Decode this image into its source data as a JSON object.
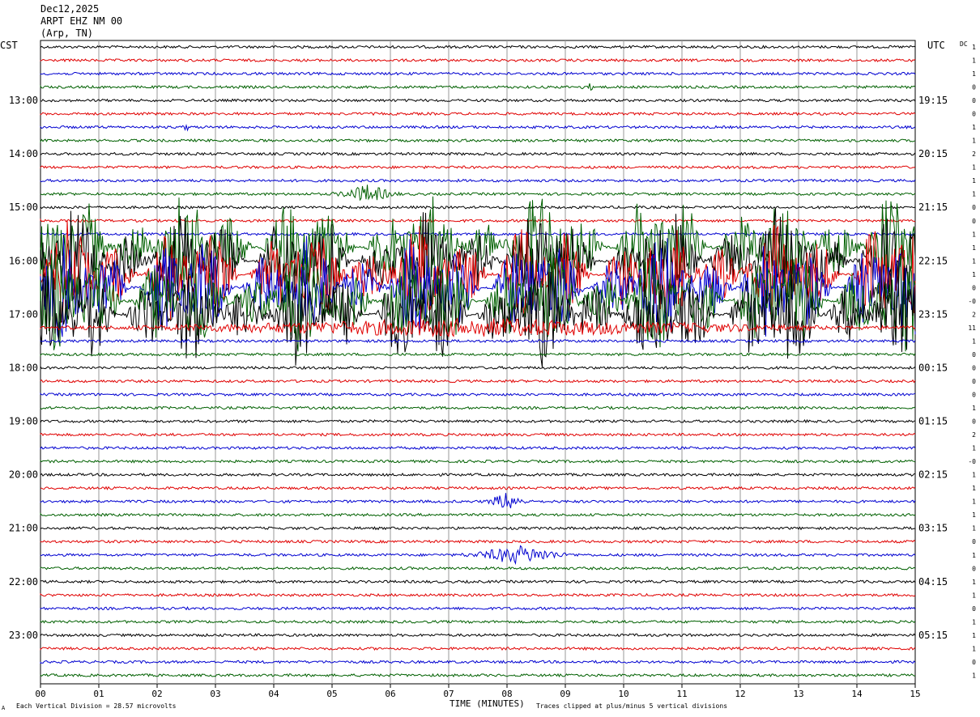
{
  "header": {
    "date": "Dec12,2025",
    "station": "ARPT EHZ NM 00",
    "location": "(Arp, TN)"
  },
  "axes": {
    "left_zone": "CST",
    "right_zone": "UTC",
    "dc_label": "DC",
    "xlabel": "TIME (MINUTES)",
    "footer_left": "Each Vertical Division =   28.57 microvolts",
    "footer_right": "Traces clipped at plus/minus 5 vertical divisions",
    "corner_mark": "A"
  },
  "colors": {
    "cycle": [
      "#000000",
      "#e00000",
      "#0000d0",
      "#006000"
    ],
    "grid": "#9a9a9a"
  },
  "chart_data": {
    "type": "line",
    "title": "ARPT EHZ NM 00",
    "xlabel": "TIME (MINUTES)",
    "xlim": [
      0,
      15
    ],
    "x_ticks": [
      "00",
      "01",
      "02",
      "03",
      "04",
      "05",
      "06",
      "07",
      "08",
      "09",
      "10",
      "11",
      "12",
      "13",
      "14",
      "15"
    ],
    "trace_count": 48,
    "left_hour_labels": [
      {
        "trace": 4,
        "label": "13:00"
      },
      {
        "trace": 8,
        "label": "14:00"
      },
      {
        "trace": 12,
        "label": "15:00"
      },
      {
        "trace": 16,
        "label": "16:00"
      },
      {
        "trace": 20,
        "label": "17:00"
      },
      {
        "trace": 24,
        "label": "18:00"
      },
      {
        "trace": 28,
        "label": "19:00"
      },
      {
        "trace": 32,
        "label": "20:00"
      },
      {
        "trace": 36,
        "label": "21:00"
      },
      {
        "trace": 40,
        "label": "22:00"
      },
      {
        "trace": 44,
        "label": "23:00"
      }
    ],
    "right_hour_labels": [
      {
        "trace": 4,
        "label": "19:15"
      },
      {
        "trace": 8,
        "label": "20:15"
      },
      {
        "trace": 12,
        "label": "21:15"
      },
      {
        "trace": 16,
        "label": "22:15"
      },
      {
        "trace": 20,
        "label": "23:15"
      },
      {
        "trace": 24,
        "label": "00:15"
      },
      {
        "trace": 28,
        "label": "01:15"
      },
      {
        "trace": 32,
        "label": "02:15"
      },
      {
        "trace": 36,
        "label": "03:15"
      },
      {
        "trace": 40,
        "label": "04:15"
      },
      {
        "trace": 44,
        "label": "05:15"
      }
    ],
    "dc_values": [
      "1",
      "1",
      "1",
      "0",
      "0",
      "0",
      "1",
      "1",
      "2",
      "1",
      "1",
      "1",
      "0",
      "0",
      "1",
      "1",
      "1",
      "1",
      "0",
      "-0",
      "2",
      "11",
      "1",
      "0",
      "0",
      "0",
      "0",
      "1",
      "0",
      "2",
      "1",
      "-0",
      "1",
      "1",
      "1",
      "1",
      "1",
      "0",
      "1",
      "0",
      "1",
      "1",
      "0",
      "1",
      "1",
      "1",
      "0",
      "1"
    ],
    "amplitude_scale": "28.57 microvolts per vertical division",
    "clip_level": "plus/minus 5 vertical divisions",
    "events": [
      {
        "trace": 15,
        "x_start": 0.0,
        "x_end": 15.0,
        "intensity": "high"
      },
      {
        "trace": 16,
        "x_start": 0.0,
        "x_end": 15.0,
        "intensity": "high"
      },
      {
        "trace": 17,
        "x_start": 0.0,
        "x_end": 15.0,
        "intensity": "high"
      },
      {
        "trace": 18,
        "x_start": 0.0,
        "x_end": 15.0,
        "intensity": "high"
      },
      {
        "trace": 19,
        "x_start": 0.0,
        "x_end": 15.0,
        "intensity": "high"
      },
      {
        "trace": 20,
        "x_start": 0.0,
        "x_end": 15.0,
        "intensity": "high"
      },
      {
        "trace": 21,
        "x_start": 0.0,
        "x_end": 15.0,
        "intensity": "medium"
      },
      {
        "trace": 11,
        "x_start": 5.0,
        "x_end": 6.2,
        "intensity": "medium"
      },
      {
        "trace": 38,
        "x_start": 7.2,
        "x_end": 9.2,
        "intensity": "medium"
      },
      {
        "trace": 34,
        "x_start": 7.6,
        "x_end": 8.4,
        "intensity": "medium"
      },
      {
        "trace": 6,
        "x_start": 2.4,
        "x_end": 2.6,
        "intensity": "low"
      },
      {
        "trace": 3,
        "x_start": 9.2,
        "x_end": 9.6,
        "intensity": "low"
      }
    ]
  }
}
